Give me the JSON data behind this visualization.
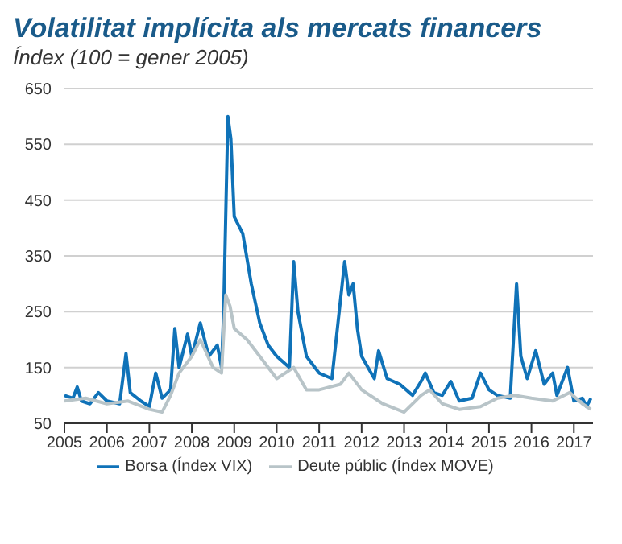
{
  "chart_data": {
    "type": "line",
    "title": "Volatilitat implícita als mercats financers",
    "subtitle": "Índex (100 = gener 2005)",
    "xlim": [
      2005,
      2017.45
    ],
    "xticks": [
      2005,
      2006,
      2007,
      2008,
      2009,
      2010,
      2011,
      2012,
      2013,
      2014,
      2015,
      2016,
      2017
    ],
    "ylim": [
      50,
      650
    ],
    "yticks": [
      50,
      150,
      250,
      350,
      450,
      550,
      650
    ],
    "grid": "y",
    "legend": "bottom",
    "marker": "none",
    "line_style": "solid",
    "series": [
      {
        "name": "Borsa (Índex VIX)",
        "color": "#0f72b8",
        "x": [
          2005.0,
          2005.2,
          2005.3,
          2005.4,
          2005.6,
          2005.8,
          2006.0,
          2006.3,
          2006.45,
          2006.55,
          2006.8,
          2007.0,
          2007.15,
          2007.3,
          2007.5,
          2007.6,
          2007.7,
          2007.9,
          2008.0,
          2008.2,
          2008.4,
          2008.6,
          2008.7,
          2008.75,
          2008.85,
          2008.92,
          2009.0,
          2009.2,
          2009.4,
          2009.6,
          2009.8,
          2010.0,
          2010.3,
          2010.4,
          2010.5,
          2010.7,
          2010.9,
          2011.0,
          2011.3,
          2011.6,
          2011.7,
          2011.8,
          2011.9,
          2012.0,
          2012.3,
          2012.4,
          2012.6,
          2012.9,
          2013.2,
          2013.4,
          2013.5,
          2013.7,
          2013.9,
          2014.1,
          2014.3,
          2014.6,
          2014.8,
          2015.0,
          2015.2,
          2015.5,
          2015.65,
          2015.75,
          2015.9,
          2016.1,
          2016.3,
          2016.5,
          2016.6,
          2016.85,
          2017.0,
          2017.2,
          2017.3,
          2017.4
        ],
        "values": [
          100,
          95,
          115,
          90,
          85,
          105,
          90,
          85,
          175,
          105,
          90,
          80,
          140,
          95,
          110,
          220,
          150,
          210,
          170,
          230,
          170,
          190,
          150,
          250,
          600,
          560,
          420,
          390,
          300,
          230,
          190,
          170,
          150,
          340,
          250,
          170,
          150,
          140,
          130,
          340,
          280,
          300,
          220,
          170,
          130,
          180,
          130,
          120,
          100,
          125,
          140,
          105,
          100,
          125,
          90,
          95,
          140,
          110,
          100,
          95,
          300,
          170,
          130,
          180,
          120,
          140,
          100,
          150,
          90,
          95,
          80,
          95
        ]
      },
      {
        "name": "Deute públic (Índex MOVE)",
        "color": "#b8c4c8",
        "x": [
          2005.0,
          2005.5,
          2006.0,
          2006.5,
          2007.0,
          2007.3,
          2007.5,
          2007.7,
          2008.0,
          2008.2,
          2008.5,
          2008.7,
          2008.8,
          2008.9,
          2009.0,
          2009.3,
          2009.6,
          2010.0,
          2010.4,
          2010.7,
          2011.0,
          2011.5,
          2011.7,
          2012.0,
          2012.5,
          2013.0,
          2013.4,
          2013.6,
          2013.9,
          2014.3,
          2014.8,
          2015.2,
          2015.6,
          2016.0,
          2016.5,
          2016.9,
          2017.2,
          2017.4
        ],
        "values": [
          90,
          95,
          85,
          90,
          75,
          70,
          100,
          140,
          170,
          200,
          150,
          140,
          280,
          260,
          220,
          200,
          170,
          130,
          150,
          110,
          110,
          120,
          140,
          110,
          85,
          70,
          100,
          110,
          85,
          75,
          80,
          95,
          100,
          95,
          90,
          105,
          85,
          75
        ]
      }
    ]
  }
}
